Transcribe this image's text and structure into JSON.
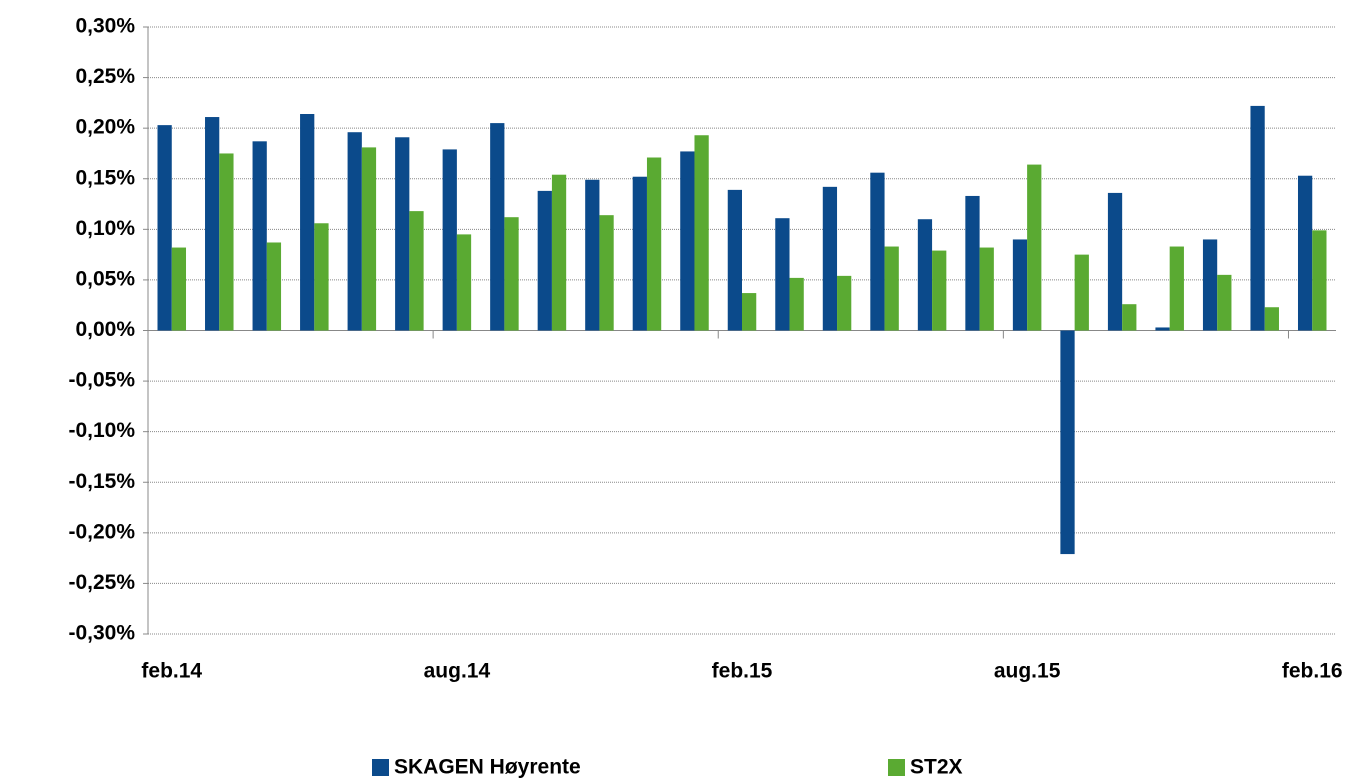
{
  "chart_data": {
    "type": "bar",
    "categories": [
      "feb.14",
      null,
      null,
      null,
      null,
      null,
      "aug.14",
      null,
      null,
      null,
      null,
      null,
      "feb.15",
      null,
      null,
      null,
      null,
      null,
      "aug.15",
      null,
      null,
      null,
      null,
      null,
      "feb.16"
    ],
    "series": [
      {
        "name": "SKAGEN Høyrente",
        "color": "#0b4a8b",
        "values": [
          0.203,
          0.211,
          0.187,
          0.214,
          0.196,
          0.191,
          0.179,
          0.205,
          0.138,
          0.149,
          0.152,
          0.177,
          0.139,
          0.111,
          0.142,
          0.156,
          0.11,
          0.133,
          0.09,
          -0.221,
          0.136,
          0.003,
          0.09,
          0.222,
          0.153
        ]
      },
      {
        "name": "ST2X",
        "color": "#5aaa32",
        "values": [
          0.082,
          0.175,
          0.087,
          0.106,
          0.181,
          0.118,
          0.095,
          0.112,
          0.154,
          0.114,
          0.171,
          0.193,
          0.037,
          0.052,
          0.054,
          0.083,
          0.079,
          0.082,
          0.164,
          0.075,
          0.026,
          0.083,
          0.055,
          0.023,
          0.099
        ]
      }
    ],
    "ylim": [
      -0.3,
      0.3
    ],
    "yticks": [
      {
        "value": -0.3,
        "label": "-0,30%"
      },
      {
        "value": -0.25,
        "label": "-0,25%"
      },
      {
        "value": -0.2,
        "label": "-0,20%"
      },
      {
        "value": -0.15,
        "label": "-0,15%"
      },
      {
        "value": -0.1,
        "label": "-0,10%"
      },
      {
        "value": -0.05,
        "label": "-0,05%"
      },
      {
        "value": 0,
        "label": "0,00%"
      },
      {
        "value": 0.05,
        "label": "0,05%"
      },
      {
        "value": 0.1,
        "label": "0,10%"
      },
      {
        "value": 0.15,
        "label": "0,15%"
      },
      {
        "value": 0.2,
        "label": "0,20%"
      },
      {
        "value": 0.25,
        "label": "0,25%"
      },
      {
        "value": 0.3,
        "label": "0,30%"
      }
    ],
    "grid": true,
    "legend": "bottom"
  }
}
